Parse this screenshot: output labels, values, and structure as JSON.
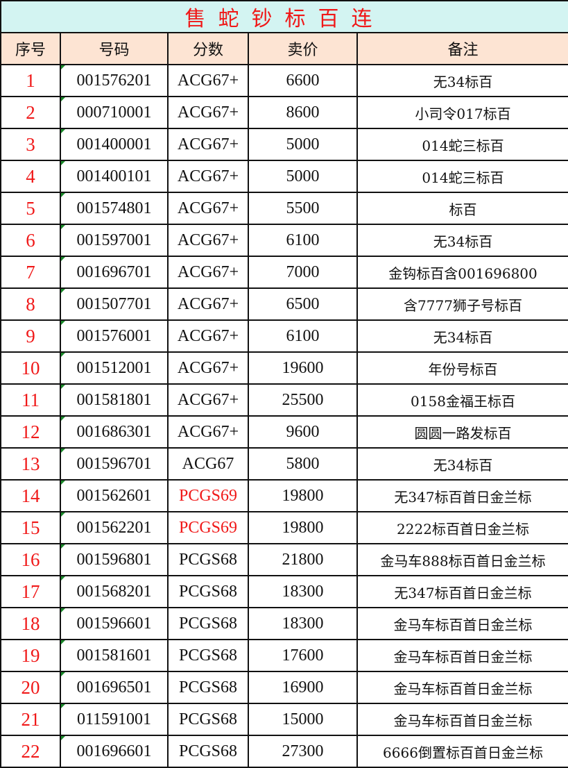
{
  "title": "售蛇钞标百连",
  "headers": [
    "序号",
    "号码",
    "分数",
    "卖价",
    "备注"
  ],
  "colors": {
    "title_bg": "#d3f4f2",
    "header_bg": "#fde4d3",
    "accent_red": "#f01818"
  },
  "rows": [
    {
      "idx": "1",
      "num": "001576201",
      "grade": "ACG67+",
      "price": "6600",
      "note": "无34标百"
    },
    {
      "idx": "2",
      "num": "000710001",
      "grade": "ACG67+",
      "price": "8600",
      "note": "小司令017标百"
    },
    {
      "idx": "3",
      "num": "001400001",
      "grade": "ACG67+",
      "price": "5000",
      "note": "014蛇三标百"
    },
    {
      "idx": "4",
      "num": "001400101",
      "grade": "ACG67+",
      "price": "5000",
      "note": "014蛇三标百"
    },
    {
      "idx": "5",
      "num": "001574801",
      "grade": "ACG67+",
      "price": "5500",
      "note": "标百"
    },
    {
      "idx": "6",
      "num": "001597001",
      "grade": "ACG67+",
      "price": "6100",
      "note": "无34标百"
    },
    {
      "idx": "7",
      "num": "001696701",
      "grade": "ACG67+",
      "price": "7000",
      "note": "金钩标百含001696800"
    },
    {
      "idx": "8",
      "num": "001507701",
      "grade": "ACG67+",
      "price": "6500",
      "note": "含7777狮子号标百"
    },
    {
      "idx": "9",
      "num": "001576001",
      "grade": "ACG67+",
      "price": "6100",
      "note": "无34标百"
    },
    {
      "idx": "10",
      "num": "001512001",
      "grade": "ACG67+",
      "price": "19600",
      "note": "年份号标百"
    },
    {
      "idx": "11",
      "num": "001581801",
      "grade": "ACG67+",
      "price": "25500",
      "note": "0158金福王标百"
    },
    {
      "idx": "12",
      "num": "001686301",
      "grade": "ACG67+",
      "price": "9600",
      "note": "圆圆一路发标百"
    },
    {
      "idx": "13",
      "num": "001596701",
      "grade": "ACG67",
      "price": "5800",
      "note": "无34标百"
    },
    {
      "idx": "14",
      "num": "001562601",
      "grade": "PCGS69",
      "grade_red": true,
      "price": "19800",
      "note": "无347标百首日金兰标"
    },
    {
      "idx": "15",
      "num": "001562201",
      "grade": "PCGS69",
      "grade_red": true,
      "price": "19800",
      "note": "2222标百首日金兰标"
    },
    {
      "idx": "16",
      "num": "001596801",
      "grade": "PCGS68",
      "price": "21800",
      "note": "金马车888标百首日金兰标"
    },
    {
      "idx": "17",
      "num": "001568201",
      "grade": "PCGS68",
      "price": "18300",
      "note": "无347标百首日金兰标"
    },
    {
      "idx": "18",
      "num": "001596601",
      "grade": "PCGS68",
      "price": "18300",
      "note": "金马车标百首日金兰标"
    },
    {
      "idx": "19",
      "num": "001581601",
      "grade": "PCGS68",
      "price": "17600",
      "note": "金马车标百首日金兰标"
    },
    {
      "idx": "20",
      "num": "001696501",
      "grade": "PCGS68",
      "price": "16900",
      "note": "金马车标百首日金兰标"
    },
    {
      "idx": "21",
      "num": "011591001",
      "grade": "PCGS68",
      "price": "15000",
      "note": "金马车标百首日金兰标"
    },
    {
      "idx": "22",
      "num": "001696601",
      "grade": "PCGS68",
      "price": "27300",
      "note": "6666倒置标百首日金兰标"
    }
  ]
}
